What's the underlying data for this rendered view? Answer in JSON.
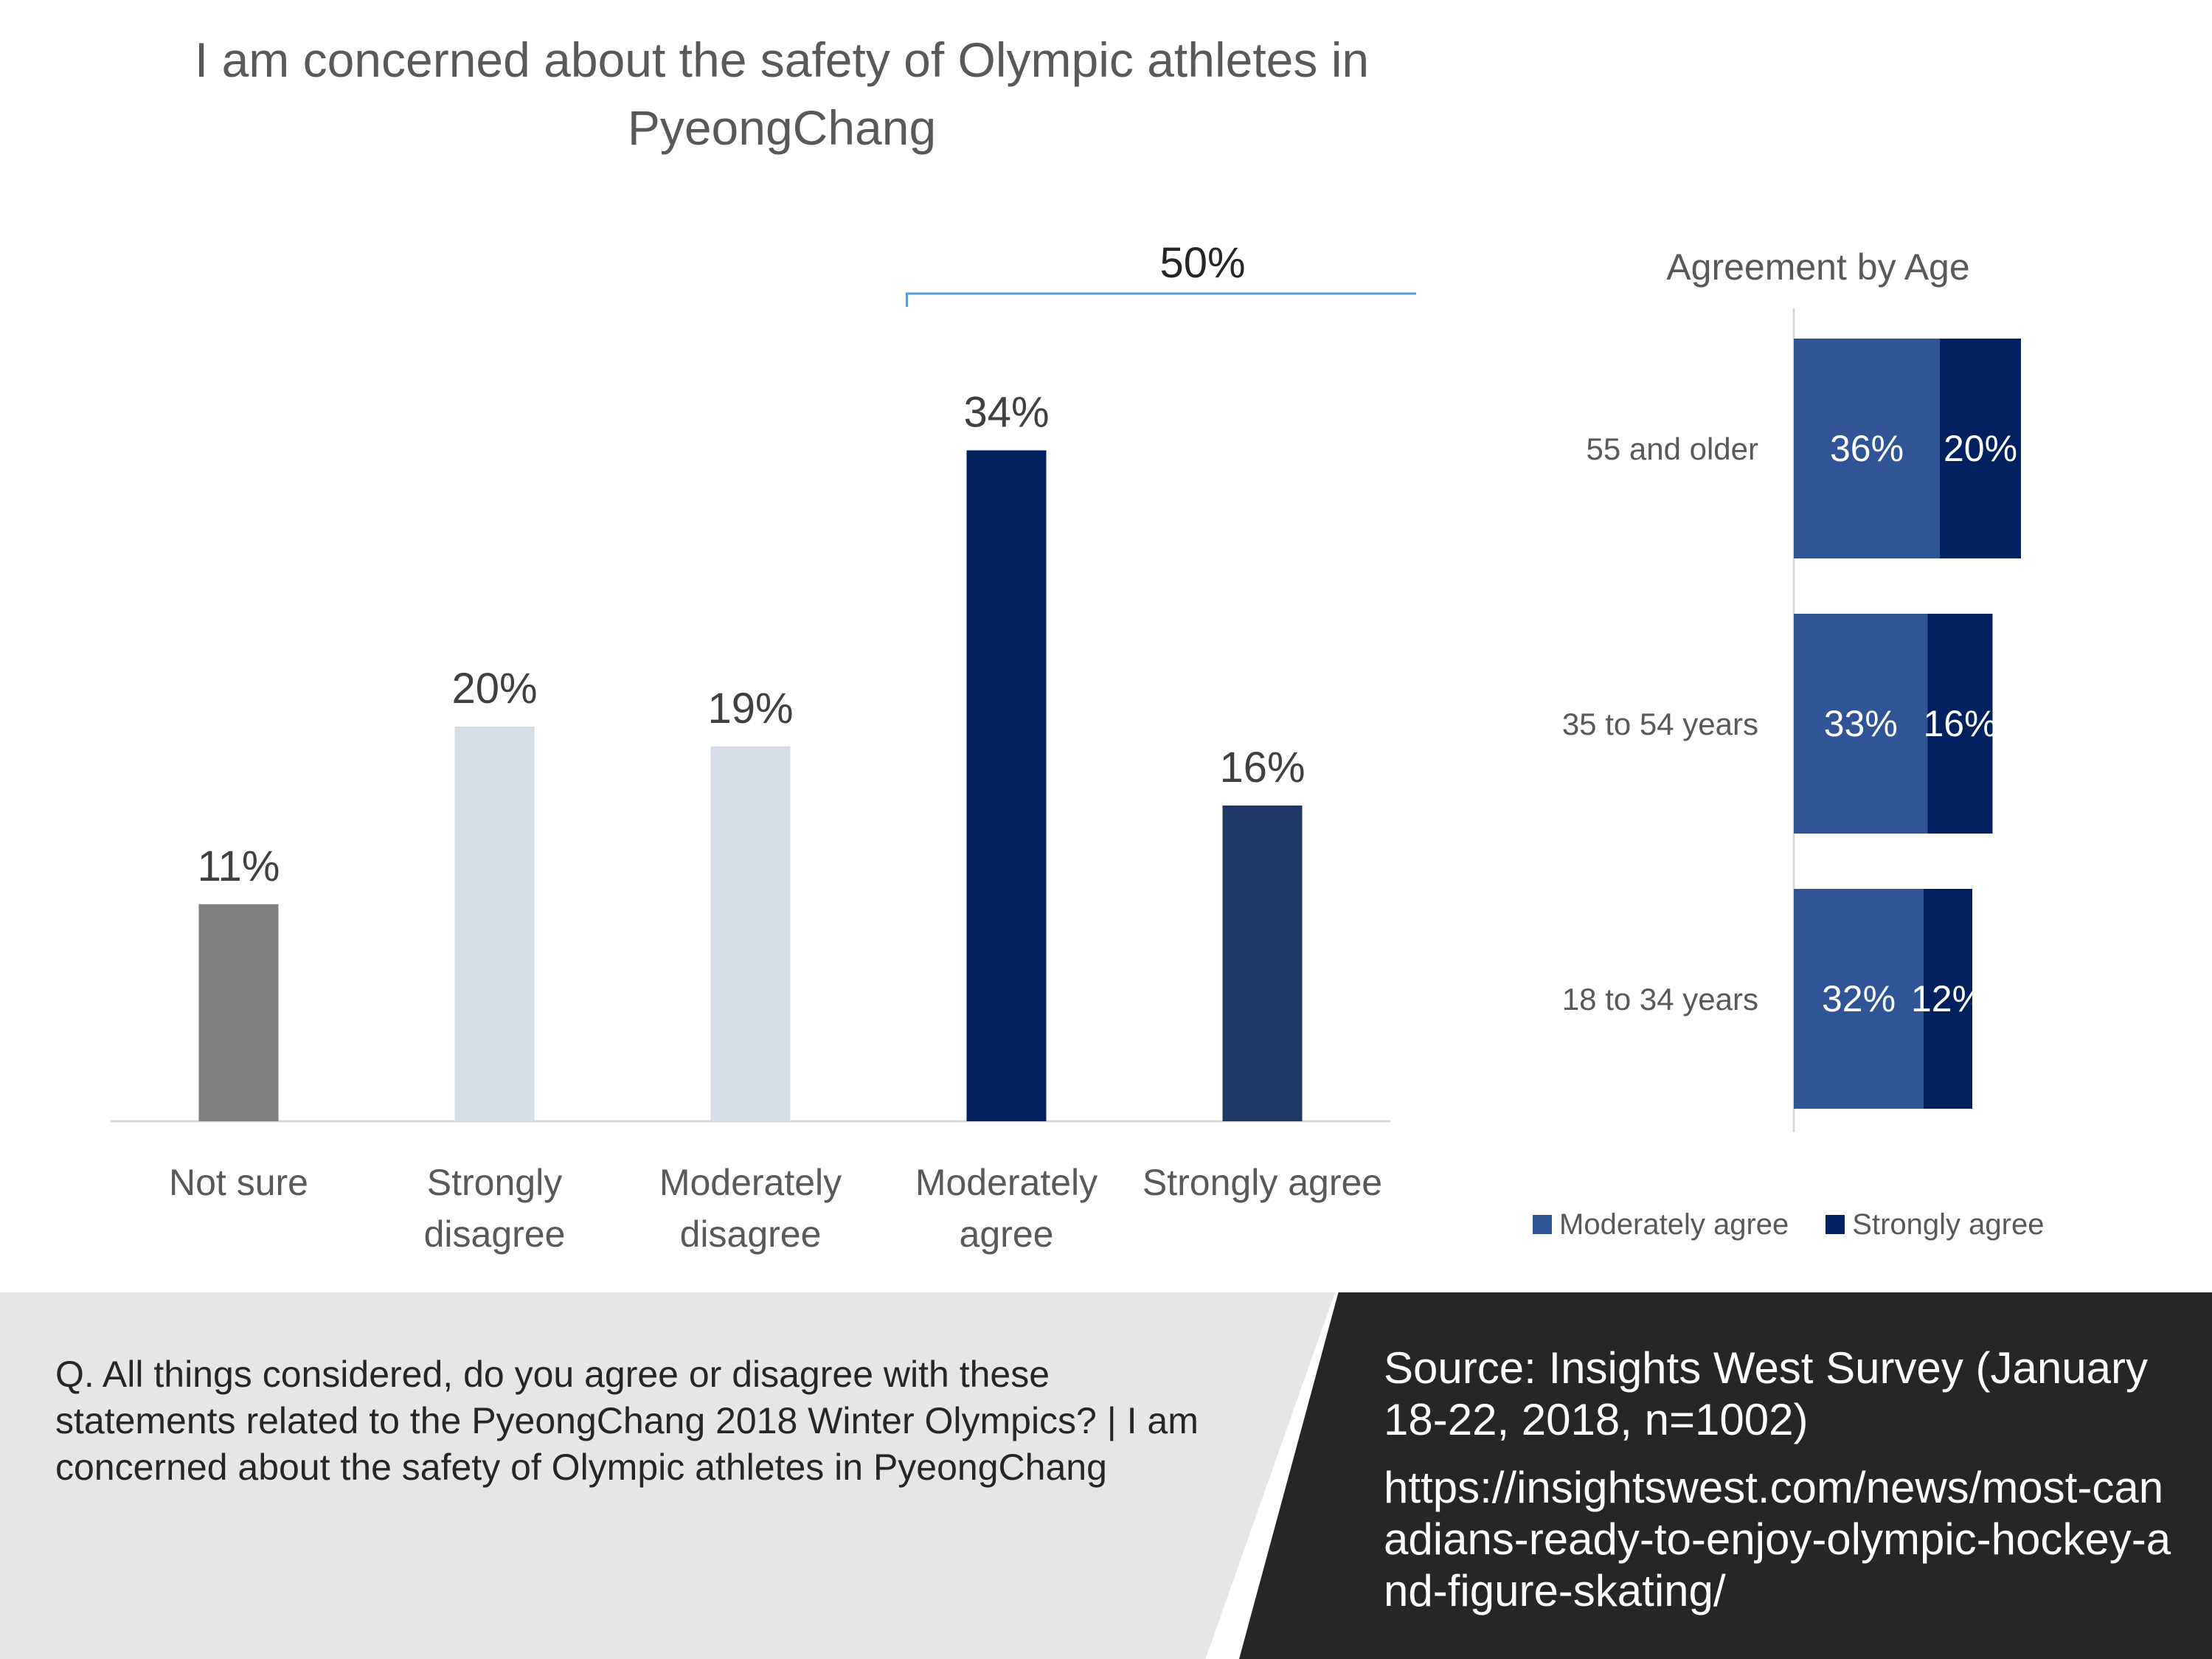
{
  "chart_data": [
    {
      "type": "bar",
      "title": "I am concerned about the safety of Olympic athletes in PyeongChang",
      "categories": [
        "Not sure",
        "Strongly disagree",
        "Moderately disagree",
        "Moderately agree",
        "Strongly agree"
      ],
      "category_lines": [
        [
          "Not sure"
        ],
        [
          "Strongly",
          "disagree"
        ],
        [
          "Moderately",
          "disagree"
        ],
        [
          "Moderately",
          "agree"
        ],
        [
          "Strongly agree"
        ]
      ],
      "values": [
        11,
        20,
        19,
        34,
        16
      ],
      "value_labels": [
        "11%",
        "20%",
        "19%",
        "34%",
        "16%"
      ],
      "colors": [
        "#7f7f7f",
        "#d6dce5",
        "#d6dce5",
        "#002060",
        "#203864"
      ],
      "ylim": [
        0,
        40
      ],
      "grid": false,
      "bracket": {
        "label": "50%",
        "from_category": 3,
        "to_category": 4,
        "color": "#5b9bd5"
      }
    },
    {
      "type": "bar",
      "orientation": "horizontal",
      "stacked": true,
      "title": "Agreement by Age",
      "categories": [
        "55 and older",
        "35 to 54 years",
        "18 to 34 years"
      ],
      "series": [
        {
          "name": "Moderately agree",
          "values": [
            36,
            33,
            32
          ],
          "labels": [
            "36%",
            "33%",
            "32%"
          ],
          "color": "#2f5597"
        },
        {
          "name": "Strongly agree",
          "values": [
            20,
            16,
            12
          ],
          "labels": [
            "20%",
            "16%",
            "12%"
          ],
          "color": "#002060"
        }
      ],
      "xlim": [
        0,
        100
      ],
      "legend_position": "bottom"
    }
  ],
  "footer": {
    "question": "Q.  All things considered, do you agree or disagree with these statements related to the PyeongChang 2018 Winter Olympics? | I am concerned about the safety of Olympic athletes in PyeongChang",
    "source": "Source: Insights West Survey (January 18-22, 2018, n=1002)",
    "url": "https://insightswest.com/news/most-canadians-ready-to-enjoy-olympic-hockey-and-figure-skating/"
  },
  "colors": {
    "footer_left_bg": "#e7e6e6",
    "footer_right_bg": "#262626"
  }
}
